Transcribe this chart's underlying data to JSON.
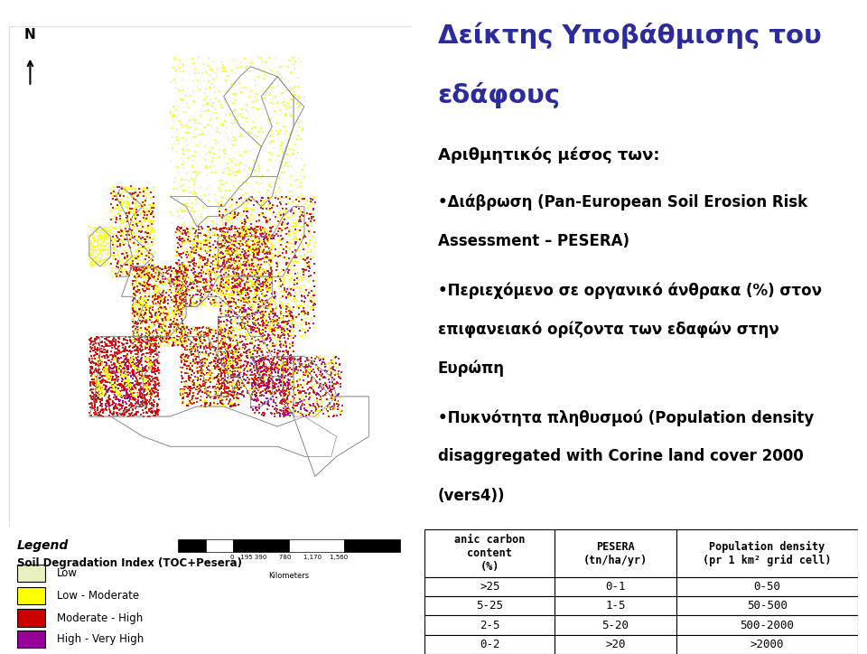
{
  "title_line1": "Δείκτης Υποβάθμισης του",
  "title_line2": "εδάφους",
  "title_color": "#2b2b9e",
  "subtitle": "Αριθμητικός μέσος των:",
  "bullet1_line1": "•Διάβρωση (Pan-European Soil Erosion Risk",
  "bullet1_line2": "Assessment – PESERA)",
  "bullet2_line1": "•Περιεχόμενο σε οργανικό άνθρακα (%) στον",
  "bullet2_line2": "επιφανειακό ορίζοντα των εδαφών στην",
  "bullet2_line3": "Ευρώπη",
  "bullet3_line1": "•Πυκνότητα πληθυσμού (Population density",
  "bullet3_line2": "disaggregated with Corine land cover 2000",
  "bullet3_line3": "(vers4))",
  "legend_title": "Legend",
  "legend_subtitle": "Soil Degradation Index (TOC+Pesera)",
  "legend_items": [
    {
      "color": "#e8f0c0",
      "label": "Low"
    },
    {
      "color": "#ffff00",
      "label": "Low - Moderate"
    },
    {
      "color": "#cc0000",
      "label": "Moderate - High"
    },
    {
      "color": "#990099",
      "label": "High - Very High"
    }
  ],
  "table_col1_header": "anic carbon\ncontent\n(%)",
  "table_col2_header": "PESERA\n(tn/ha/yr)",
  "table_col3_header": "Population density\n(pr 1 km² grid cell)",
  "table_data": [
    [
      ">25",
      "0-1",
      "0-50"
    ],
    [
      "5-25",
      "1-5",
      "50-500"
    ],
    [
      "2-5",
      "5-20",
      "500-2000"
    ],
    [
      "0-2",
      ">20",
      ">2000"
    ]
  ],
  "bg_color": "#ffffff",
  "text_color": "#000000",
  "scale_bar_numbers": "0   195 390      780      1,170    1,560",
  "scale_bar_unit": "Kilometers"
}
